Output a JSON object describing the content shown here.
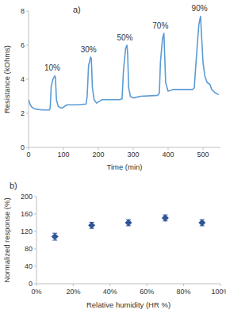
{
  "chart_data": [
    {
      "type": "line",
      "title": "a)",
      "x_label": "Time (min)",
      "y_label": "Resistance (kOhms)",
      "x": [
        0,
        5,
        10,
        20,
        40,
        60,
        62,
        65,
        70,
        75,
        77,
        80,
        85,
        95,
        110,
        140,
        165,
        168,
        172,
        178,
        180,
        183,
        188,
        195,
        210,
        260,
        268,
        272,
        278,
        282,
        284,
        287,
        292,
        300,
        320,
        370,
        375,
        378,
        384,
        388,
        390,
        393,
        400,
        415,
        470,
        475,
        480,
        488,
        493,
        496,
        500,
        505,
        512,
        520,
        525,
        535,
        545
      ],
      "values": [
        2.8,
        2.5,
        2.35,
        2.25,
        2.2,
        2.2,
        2.3,
        3.6,
        4.0,
        4.2,
        4.1,
        2.8,
        2.4,
        2.3,
        2.5,
        2.5,
        2.55,
        3.0,
        4.8,
        5.3,
        5.2,
        3.5,
        2.8,
        2.6,
        2.8,
        2.8,
        2.85,
        4.5,
        5.8,
        6.0,
        5.5,
        3.5,
        3.0,
        2.9,
        3.0,
        3.05,
        3.2,
        5.0,
        6.4,
        6.7,
        5.5,
        3.8,
        3.3,
        3.4,
        3.4,
        3.5,
        5.0,
        7.2,
        7.7,
        6.5,
        5.0,
        4.2,
        3.8,
        3.7,
        3.4,
        3.2,
        3.1
      ],
      "color": "#5b9bd5",
      "xlim": [
        0,
        550
      ],
      "xticks": [
        0,
        100,
        200,
        300,
        400,
        500
      ],
      "ylim": [
        0,
        8
      ],
      "yticks": [
        0,
        2,
        4,
        6,
        8
      ],
      "grid": false,
      "annotations": [
        {
          "text": "10%",
          "x": 68,
          "y": 4.5
        },
        {
          "text": "30%",
          "x": 172,
          "y": 5.6
        },
        {
          "text": "50%",
          "x": 276,
          "y": 6.3
        },
        {
          "text": "70%",
          "x": 378,
          "y": 7.0
        },
        {
          "text": "90%",
          "x": 490,
          "y": 8.0
        }
      ]
    },
    {
      "type": "scatter",
      "title": "b)",
      "x_label": "Relative humidity (HR %)",
      "y_label": "Normalized response (%)",
      "x": [
        10,
        30,
        50,
        70,
        90
      ],
      "values": [
        108,
        134,
        140,
        151,
        140
      ],
      "errors": [
        8,
        7,
        7,
        7,
        7
      ],
      "color": "#2f5597",
      "marker": "diamond",
      "xlim": [
        0,
        100
      ],
      "xticks": [
        {
          "value": 0,
          "label": "0%"
        },
        {
          "value": 20,
          "label": "20%"
        },
        {
          "value": 40,
          "label": "40%"
        },
        {
          "value": 60,
          "label": "60%"
        },
        {
          "value": 80,
          "label": "80%"
        },
        {
          "value": 100,
          "label": "100%"
        }
      ],
      "ylim": [
        0,
        200
      ],
      "yticks": [
        0,
        40,
        80,
        120,
        160,
        200
      ],
      "grid": false
    }
  ]
}
